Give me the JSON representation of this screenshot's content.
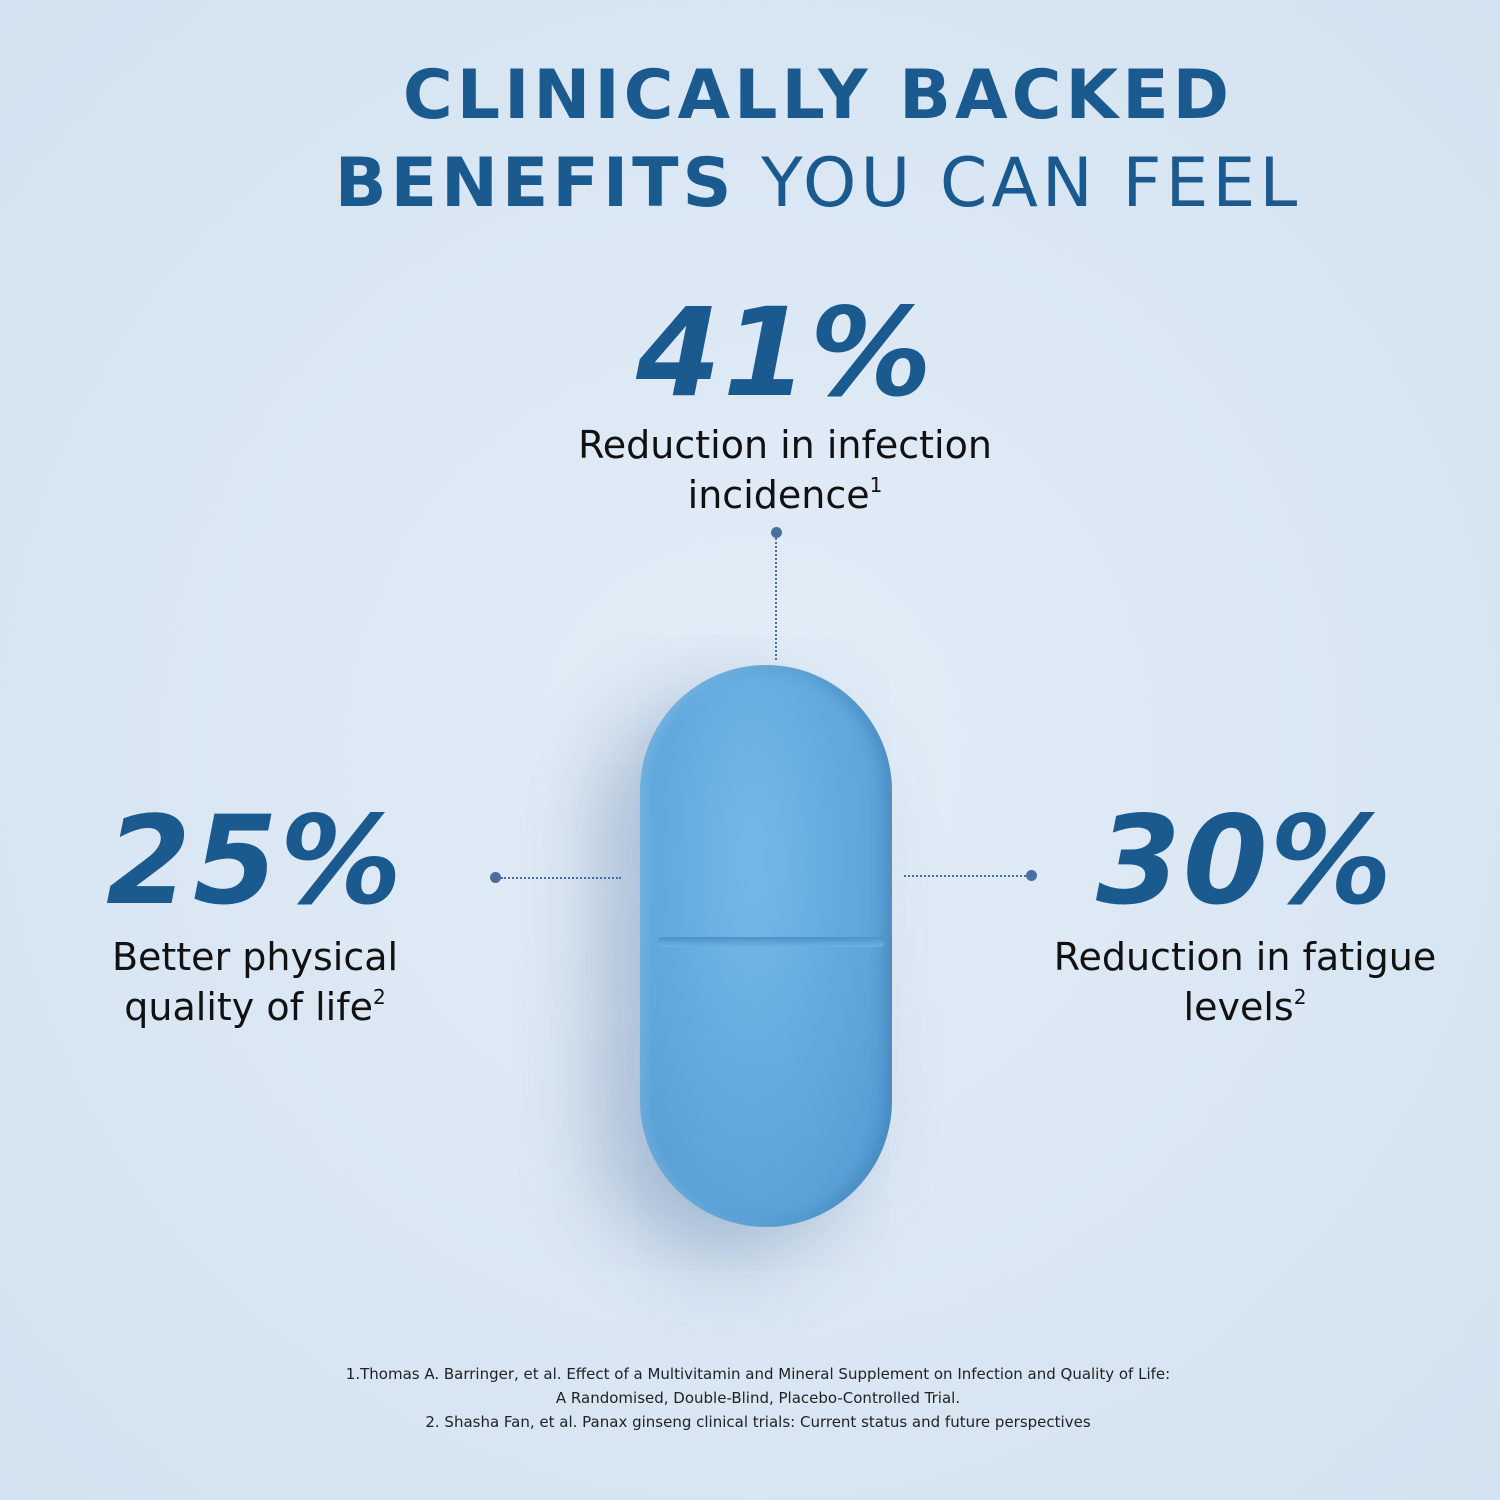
{
  "title": {
    "line1": "CLINICALLY BACKED",
    "line2_bold": "BENEFITS",
    "line2_regular": " YOU CAN FEEL"
  },
  "stats": [
    {
      "value": "41%",
      "label": "Reduction in infection incidence",
      "ref": "1"
    },
    {
      "value": "25%",
      "label": "Better physical quality of life",
      "ref": "2"
    },
    {
      "value": "30%",
      "label": "Reduction in fatigue levels",
      "ref": "2"
    }
  ],
  "footnotes": [
    "1.Thomas A. Barringer, et al. Effect of a Multivitamin and Mineral Supplement on Infection and Quality of Life:",
    "A Randomised, Double-Blind, Placebo-Controlled Trial.",
    "2. Shasha Fan, et al. Panax ginseng clinical trials: Current status and future perspectives"
  ],
  "colors": {
    "accent": "#1b5a8e",
    "pill": "#5fa8dd",
    "background": "#dbe7f3"
  }
}
